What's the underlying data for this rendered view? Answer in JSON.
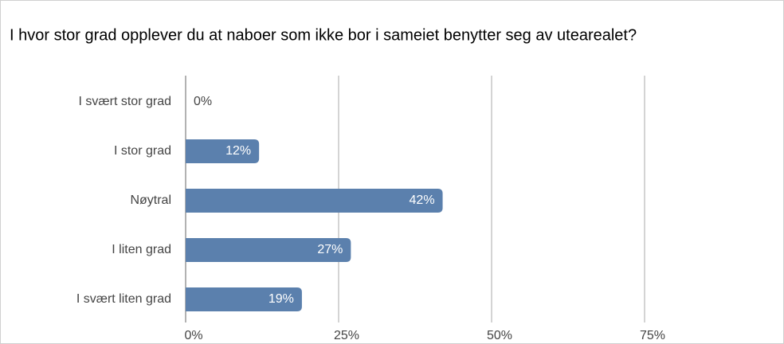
{
  "chart_data": {
    "type": "bar",
    "orientation": "horizontal",
    "title": "I hvor stor grad opplever du at naboer som ikke bor i sameiet benytter seg av utearealet?",
    "categories": [
      "I svært stor grad",
      "I stor grad",
      "Nøytral",
      "I liten grad",
      "I svært liten grad"
    ],
    "values": [
      0,
      12,
      42,
      27,
      19
    ],
    "value_labels": [
      "0%",
      "12%",
      "42%",
      "27%",
      "19%"
    ],
    "color": "#5b80ad",
    "xlim": [
      0,
      75
    ],
    "xticks": [
      {
        "value": 0,
        "label": "0%"
      },
      {
        "value": 25,
        "label": "25%"
      },
      {
        "value": 50,
        "label": "50%"
      },
      {
        "value": 75,
        "label": "75%"
      }
    ],
    "grid": true
  }
}
